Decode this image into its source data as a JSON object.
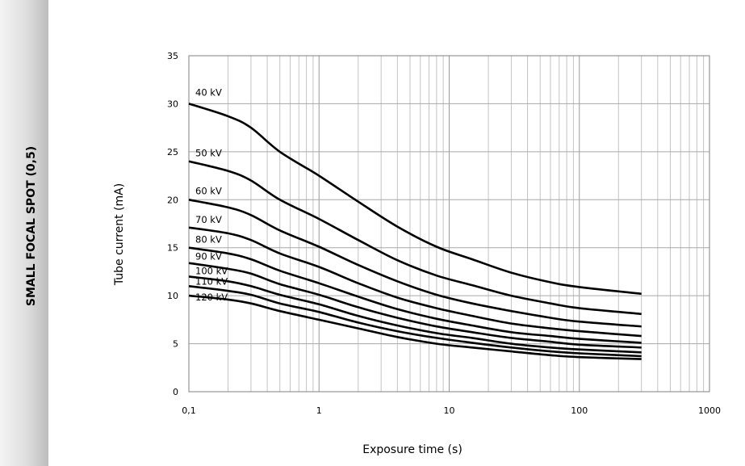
{
  "side_title": "SMALL FOCAL SPOT (0,5)",
  "chart_data": {
    "type": "line",
    "title": "",
    "xlabel": "Exposure time (s)",
    "ylabel": "Tube current (mA)",
    "xscale": "log",
    "xlim": [
      0.1,
      1000
    ],
    "ylim": [
      0,
      35
    ],
    "grid": true,
    "x_tick_labels": [
      "0,1",
      "1",
      "10",
      "100",
      "1000"
    ],
    "y_tick_labels": [
      "0",
      "5",
      "10",
      "15",
      "20",
      "25",
      "30",
      "35"
    ],
    "series": [
      {
        "name": "40 kV",
        "points": [
          [
            0.1,
            30
          ],
          [
            0.2,
            28.7
          ],
          [
            0.3,
            27.5
          ],
          [
            0.5,
            25
          ],
          [
            1,
            22.5
          ],
          [
            2,
            19.8
          ],
          [
            4,
            17.2
          ],
          [
            8,
            15.1
          ],
          [
            15,
            13.8
          ],
          [
            30,
            12.4
          ],
          [
            60,
            11.4
          ],
          [
            100,
            10.9
          ],
          [
            300,
            10.2
          ]
        ]
      },
      {
        "name": "50 kV",
        "points": [
          [
            0.1,
            24
          ],
          [
            0.2,
            23
          ],
          [
            0.3,
            22
          ],
          [
            0.5,
            20
          ],
          [
            1,
            18
          ],
          [
            2,
            15.8
          ],
          [
            4,
            13.7
          ],
          [
            8,
            12.1
          ],
          [
            15,
            11.1
          ],
          [
            30,
            10
          ],
          [
            60,
            9.2
          ],
          [
            100,
            8.7
          ],
          [
            300,
            8.1
          ]
        ]
      },
      {
        "name": "60 kV",
        "points": [
          [
            0.1,
            20
          ],
          [
            0.2,
            19.2
          ],
          [
            0.3,
            18.4
          ],
          [
            0.5,
            16.8
          ],
          [
            1,
            15.1
          ],
          [
            2,
            13.2
          ],
          [
            4,
            11.5
          ],
          [
            8,
            10.1
          ],
          [
            15,
            9.2
          ],
          [
            30,
            8.4
          ],
          [
            60,
            7.7
          ],
          [
            100,
            7.3
          ],
          [
            300,
            6.8
          ]
        ]
      },
      {
        "name": "70 kV",
        "points": [
          [
            0.1,
            17.1
          ],
          [
            0.2,
            16.5
          ],
          [
            0.3,
            15.8
          ],
          [
            0.5,
            14.4
          ],
          [
            1,
            13
          ],
          [
            2,
            11.3
          ],
          [
            4,
            9.8
          ],
          [
            8,
            8.7
          ],
          [
            15,
            7.9
          ],
          [
            30,
            7.1
          ],
          [
            60,
            6.6
          ],
          [
            100,
            6.3
          ],
          [
            300,
            5.8
          ]
        ]
      },
      {
        "name": "80 kV",
        "points": [
          [
            0.1,
            15
          ],
          [
            0.2,
            14.4
          ],
          [
            0.3,
            13.8
          ],
          [
            0.5,
            12.6
          ],
          [
            1,
            11.3
          ],
          [
            2,
            9.9
          ],
          [
            4,
            8.6
          ],
          [
            8,
            7.6
          ],
          [
            15,
            6.9
          ],
          [
            30,
            6.2
          ],
          [
            60,
            5.8
          ],
          [
            100,
            5.5
          ],
          [
            300,
            5.1
          ]
        ]
      },
      {
        "name": "90 kV",
        "points": [
          [
            0.1,
            13.4
          ],
          [
            0.2,
            12.8
          ],
          [
            0.3,
            12.3
          ],
          [
            0.5,
            11.2
          ],
          [
            1,
            10.1
          ],
          [
            2,
            8.8
          ],
          [
            4,
            7.7
          ],
          [
            8,
            6.8
          ],
          [
            15,
            6.2
          ],
          [
            30,
            5.6
          ],
          [
            60,
            5.2
          ],
          [
            100,
            4.9
          ],
          [
            300,
            4.6
          ]
        ]
      },
      {
        "name": "100 kV",
        "points": [
          [
            0.1,
            12
          ],
          [
            0.2,
            11.5
          ],
          [
            0.3,
            11
          ],
          [
            0.5,
            10.1
          ],
          [
            1,
            9.1
          ],
          [
            2,
            7.9
          ],
          [
            4,
            6.9
          ],
          [
            8,
            6.1
          ],
          [
            15,
            5.6
          ],
          [
            30,
            5
          ],
          [
            60,
            4.6
          ],
          [
            100,
            4.4
          ],
          [
            300,
            4.1
          ]
        ]
      },
      {
        "name": "110 kV",
        "points": [
          [
            0.1,
            11
          ],
          [
            0.2,
            10.5
          ],
          [
            0.3,
            10.1
          ],
          [
            0.5,
            9.2
          ],
          [
            1,
            8.3
          ],
          [
            2,
            7.2
          ],
          [
            4,
            6.3
          ],
          [
            8,
            5.6
          ],
          [
            15,
            5.1
          ],
          [
            30,
            4.6
          ],
          [
            60,
            4.2
          ],
          [
            100,
            4
          ],
          [
            300,
            3.7
          ]
        ]
      },
      {
        "name": "120 kV",
        "points": [
          [
            0.1,
            10
          ],
          [
            0.2,
            9.6
          ],
          [
            0.3,
            9.2
          ],
          [
            0.5,
            8.4
          ],
          [
            1,
            7.5
          ],
          [
            2,
            6.6
          ],
          [
            4,
            5.7
          ],
          [
            8,
            5
          ],
          [
            15,
            4.6
          ],
          [
            30,
            4.2
          ],
          [
            60,
            3.8
          ],
          [
            100,
            3.6
          ],
          [
            300,
            3.4
          ]
        ]
      }
    ]
  }
}
